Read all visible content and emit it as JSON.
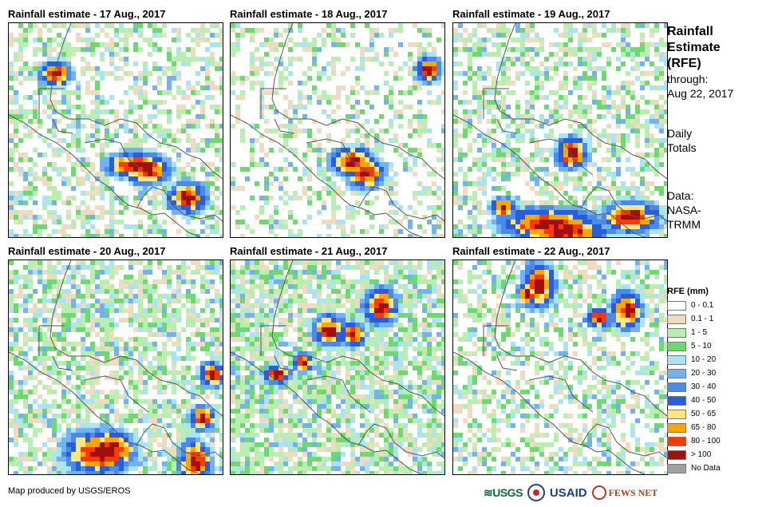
{
  "panels": [
    {
      "title": "Rainfall estimate - 17 Aug., 2017"
    },
    {
      "title": "Rainfall estimate - 18 Aug., 2017"
    },
    {
      "title": "Rainfall estimate - 19 Aug., 2017"
    },
    {
      "title": "Rainfall estimate - 20 Aug., 2017"
    },
    {
      "title": "Rainfall estimate - 21 Aug., 2017"
    },
    {
      "title": "Rainfall estimate - 22 Aug., 2017"
    }
  ],
  "side": {
    "title_lines": [
      "Rainfall",
      "Estimate",
      "(RFE)"
    ],
    "through_label": "through:",
    "date": "Aug 22, 2017",
    "totals_lines": [
      "Daily",
      "Totals"
    ],
    "data_lines": [
      "Data:",
      "NASA-",
      "TRMM"
    ]
  },
  "legend": {
    "title": "RFE (mm)",
    "items": [
      {
        "label": "0 - 0.1",
        "color": "#ffffff"
      },
      {
        "label": "0.1 - 1",
        "color": "#eddcc0"
      },
      {
        "label": "1 - 5",
        "color": "#b8efb0"
      },
      {
        "label": "5 - 10",
        "color": "#70d870"
      },
      {
        "label": "10 - 20",
        "color": "#a8e4f4"
      },
      {
        "label": "20 - 30",
        "color": "#72b2f0"
      },
      {
        "label": "30 - 40",
        "color": "#4a8ae8"
      },
      {
        "label": "40 - 50",
        "color": "#2a5ed8"
      },
      {
        "label": "50 - 65",
        "color": "#ffe680"
      },
      {
        "label": "65 - 80",
        "color": "#ffa500"
      },
      {
        "label": "80 - 100",
        "color": "#ff3a00"
      },
      {
        "label": "> 100",
        "color": "#a01010"
      },
      {
        "label": "No Data",
        "color": "#a0a0a0"
      }
    ]
  },
  "footer": {
    "credit": "Map produced by USGS/EROS",
    "logos": {
      "usgs": "USGS",
      "usaid": "USAID",
      "fews": "FEWS NET"
    }
  }
}
